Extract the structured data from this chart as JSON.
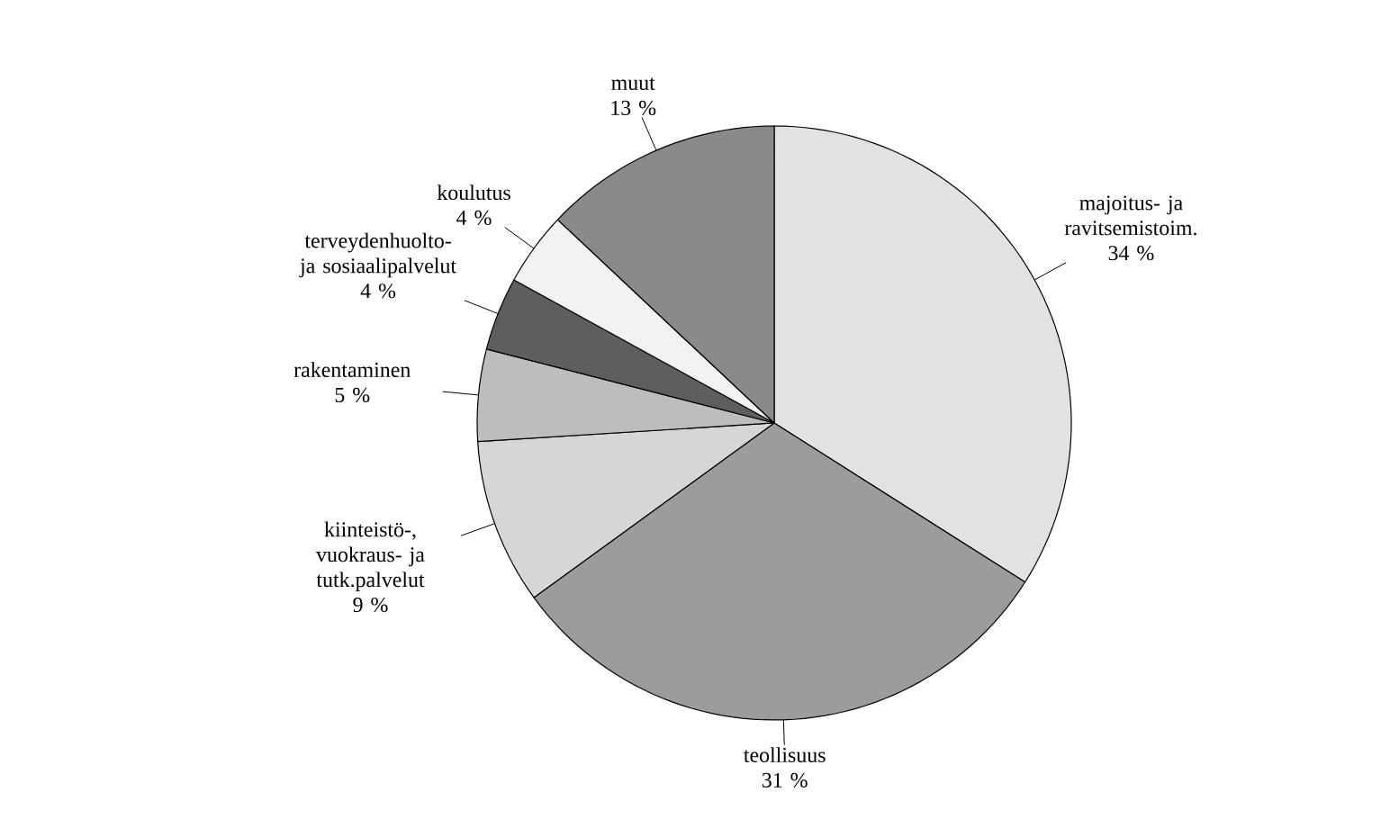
{
  "chart_data": {
    "type": "pie",
    "categories": [
      "majoitus- ja ravitsemistoim.",
      "teollisuus",
      "kiinteistö-, vuokraus- ja tutk.palvelut",
      "rakentaminen",
      "terveydenhuolto- ja sosiaalipalvelut",
      "koulutus",
      "muut"
    ],
    "values": [
      34,
      31,
      9,
      5,
      4,
      4,
      13
    ],
    "value_labels": [
      "34 %",
      "31 %",
      "9 %",
      "5 %",
      "4 %",
      "4 %",
      "13 %"
    ],
    "colors": [
      "#e2e2e2",
      "#9c9c9c",
      "#d6d6d6",
      "#bdbdbd",
      "#5e5e5e",
      "#f2f2f2",
      "#8a8a8a"
    ]
  }
}
